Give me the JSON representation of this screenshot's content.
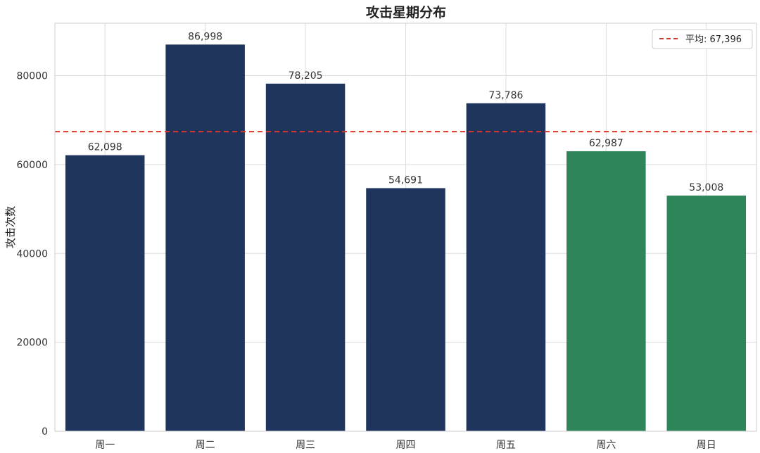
{
  "chart_data": {
    "type": "bar",
    "title": "攻击星期分布",
    "xlabel": "",
    "ylabel": "攻击次数",
    "categories": [
      "周一",
      "周二",
      "周三",
      "周四",
      "周五",
      "周六",
      "周日"
    ],
    "values": [
      62098,
      86998,
      78205,
      54691,
      73786,
      62987,
      53008
    ],
    "value_labels": [
      "62,098",
      "86,998",
      "78,205",
      "54,691",
      "73,786",
      "62,987",
      "53,008"
    ],
    "bar_colors": [
      "#1f355e",
      "#1f355e",
      "#1f355e",
      "#1f355e",
      "#1f355e",
      "#2e855a",
      "#2e855a"
    ],
    "ylim": [
      0,
      91800
    ],
    "yticks": [
      0,
      20000,
      40000,
      60000,
      80000
    ],
    "ytick_labels": [
      "0",
      "20000",
      "40000",
      "60000",
      "80000"
    ],
    "grid": true,
    "mean_line": {
      "value": 67396,
      "color": "#d33a2f",
      "style": "dashed"
    },
    "legend": {
      "position": "top-right",
      "entries": [
        "平均: 67,396"
      ]
    }
  }
}
